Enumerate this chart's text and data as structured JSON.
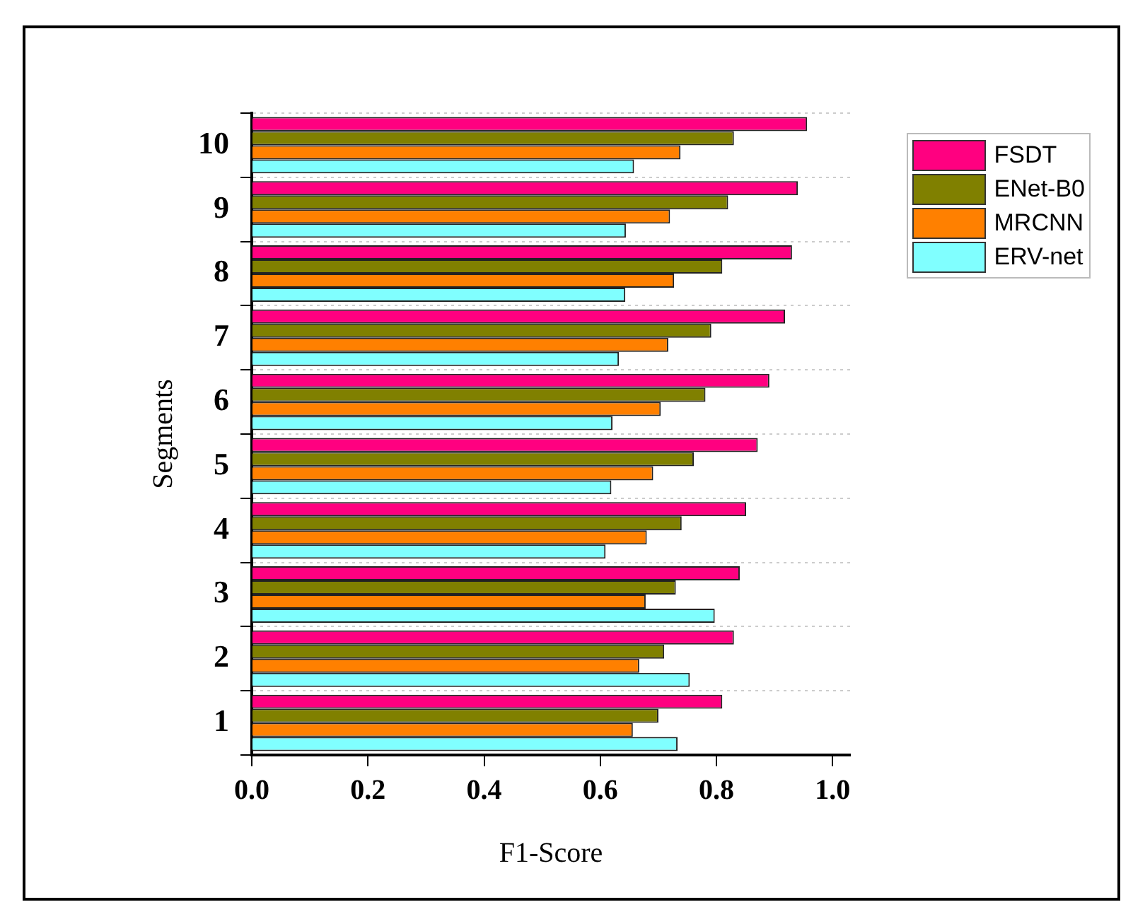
{
  "chart_data": {
    "type": "bar",
    "orientation": "horizontal",
    "xlabel": "F1-Score",
    "ylabel": "Segments",
    "categories": [
      "10",
      "9",
      "8",
      "7",
      "6",
      "5",
      "4",
      "3",
      "2",
      "1"
    ],
    "series": [
      {
        "name": "FSDT",
        "color": "#ff0080",
        "values": [
          0.956,
          0.94,
          0.93,
          0.918,
          0.891,
          0.871,
          0.851,
          0.84,
          0.83,
          0.81
        ]
      },
      {
        "name": "ENet-B0",
        "color": "#808000",
        "values": [
          0.83,
          0.82,
          0.81,
          0.791,
          0.781,
          0.761,
          0.74,
          0.73,
          0.71,
          0.7
        ]
      },
      {
        "name": "MRCNN",
        "color": "#ff8000",
        "values": [
          0.738,
          0.72,
          0.727,
          0.717,
          0.704,
          0.691,
          0.68,
          0.678,
          0.667,
          0.656
        ]
      },
      {
        "name": "ERV-net",
        "color": "#80ffff",
        "values": [
          0.658,
          0.644,
          0.643,
          0.632,
          0.621,
          0.619,
          0.609,
          0.797,
          0.754,
          0.733
        ]
      }
    ],
    "xlim": [
      0,
      1.03
    ],
    "xticks": [
      {
        "value": 0,
        "label": "0.0"
      },
      {
        "value": 0.2,
        "label": "0.2"
      },
      {
        "value": 0.4,
        "label": "0.4"
      },
      {
        "value": 0.6,
        "label": "0.6"
      },
      {
        "value": 0.8,
        "label": "0.8"
      },
      {
        "value": 1,
        "label": "1.0"
      }
    ],
    "grid": "y",
    "legend": "right"
  }
}
